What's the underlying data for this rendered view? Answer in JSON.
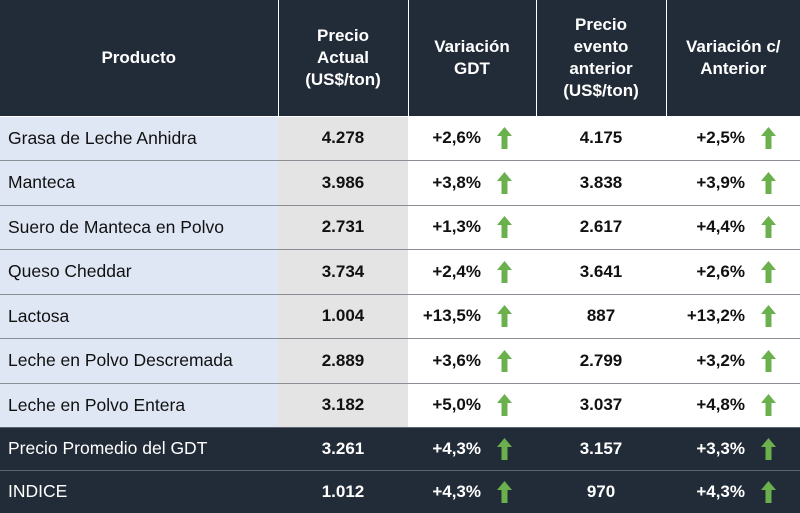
{
  "columns": {
    "product": "Producto",
    "current_price": [
      "Precio",
      "Actual",
      "(US$/ton)"
    ],
    "variation_gdt": [
      "Variación",
      "GDT"
    ],
    "previous_price": [
      "Precio",
      "evento",
      "anterior",
      "(US$/ton)"
    ],
    "variation_prev": [
      "Variación c/",
      "Anterior"
    ]
  },
  "rows": [
    {
      "product": "Grasa de Leche Anhidra",
      "price": "4.278",
      "var_gdt": "+2,6%",
      "prev_price": "4.175",
      "var_prev": "+2,5%"
    },
    {
      "product": "Manteca",
      "price": "3.986",
      "var_gdt": "+3,8%",
      "prev_price": "3.838",
      "var_prev": "+3,9%"
    },
    {
      "product": "Suero de Manteca en Polvo",
      "price": "2.731",
      "var_gdt": "+1,3%",
      "prev_price": "2.617",
      "var_prev": "+4,4%"
    },
    {
      "product": "Queso Cheddar",
      "price": "3.734",
      "var_gdt": "+2,4%",
      "prev_price": "3.641",
      "var_prev": "+2,6%"
    },
    {
      "product": "Lactosa",
      "price": "1.004",
      "var_gdt": "+13,5%",
      "prev_price": "887",
      "var_prev": "+13,2%"
    },
    {
      "product": "Leche en Polvo Descremada",
      "price": "2.889",
      "var_gdt": "+3,6%",
      "prev_price": "2.799",
      "var_prev": "+3,2%"
    },
    {
      "product": "Leche en Polvo Entera",
      "price": "3.182",
      "var_gdt": "+5,0%",
      "prev_price": "3.037",
      "var_prev": "+4,8%"
    }
  ],
  "summary": [
    {
      "product": "Precio Promedio del GDT",
      "price": "3.261",
      "var_gdt": "+4,3%",
      "prev_price": "3.157",
      "var_prev": "+3,3%"
    },
    {
      "product": "INDICE",
      "price": "1.012",
      "var_gdt": "+4,3%",
      "prev_price": "970",
      "var_prev": "+4,3%"
    }
  ],
  "icons": {
    "up": "arrow-up-icon"
  },
  "colors": {
    "header_bg": "#222b38",
    "product_bg": "#dfe7f5",
    "price_bg": "#e4e4e4",
    "arrow_green": "#6ab04c"
  }
}
